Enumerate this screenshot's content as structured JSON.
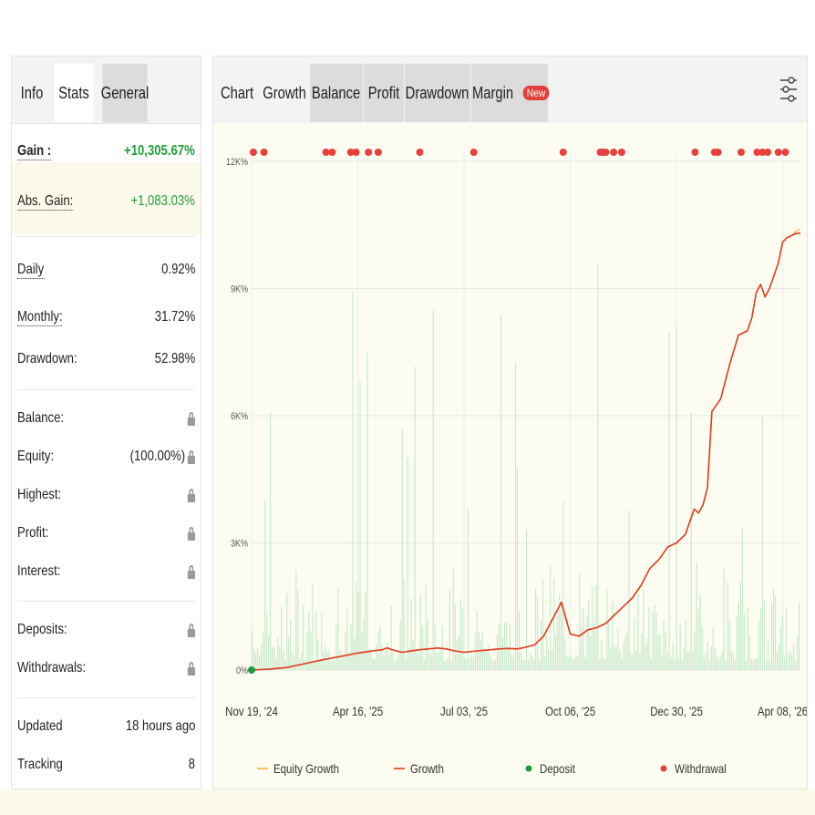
{
  "left_tabs": [
    "Info",
    "Stats",
    "General"
  ],
  "stats": {
    "gain": {
      "label": "Gain :",
      "value": "+10,305.67%"
    },
    "abs_gain": {
      "label": "Abs. Gain:",
      "value": "+1,083.03%"
    },
    "daily": {
      "label": "Daily",
      "value": "0.92%"
    },
    "monthly": {
      "label": "Monthly:",
      "value": "31.72%"
    },
    "drawdown": {
      "label": "Drawdown:",
      "value": "52.98%"
    },
    "balance": {
      "label": "Balance:"
    },
    "equity": {
      "label": "Equity:",
      "value": "(100.00%)"
    },
    "highest": {
      "label": "Highest:"
    },
    "profit": {
      "label": "Profit:"
    },
    "interest": {
      "label": "Interest:"
    },
    "deposits": {
      "label": "Deposits:"
    },
    "withdrawals": {
      "label": "Withdrawals:"
    },
    "updated": {
      "label": "Updated",
      "value": "18 hours ago"
    },
    "tracking": {
      "label": "Tracking",
      "value": "8"
    }
  },
  "right_tabs": [
    "Chart",
    "Growth",
    "Balance",
    "Profit",
    "Drawdown",
    "Margin"
  ],
  "new_badge": "New",
  "colors": {
    "gain_green": "#1f9e3a",
    "growth_line": "#e23b1e",
    "equity_line": "#f2b53c",
    "deposit_dot": "#1a9e3c",
    "withdrawal_dot": "#e8403a",
    "volume_bars": "#bfe6c8",
    "badge_red": "#e0413a"
  },
  "icons": {
    "settings": "sliders-icon",
    "lock": "lock-icon"
  },
  "chart_data": {
    "type": "line",
    "y_ticks": [
      "0%",
      "3K%",
      "6K%",
      "9K%",
      "12K%"
    ],
    "ylim": [
      0,
      12000
    ],
    "x_ticks": [
      "Nov 19, '24",
      "Apr 16, '25",
      "Jul 03, '25",
      "Oct 06, '25",
      "Dec 30, '25",
      "Apr 08, '26"
    ],
    "x": [
      0,
      20,
      40,
      60,
      80,
      100,
      120,
      140,
      148,
      150,
      153,
      156,
      160,
      170,
      180,
      190,
      200,
      210,
      220,
      230,
      240,
      250,
      260,
      270,
      280,
      290,
      300,
      310,
      320,
      330,
      340,
      350,
      360,
      370,
      380,
      390,
      400,
      410,
      420,
      430,
      440,
      450,
      460,
      470,
      480,
      490,
      500,
      505,
      510,
      515,
      520,
      530,
      540,
      550,
      560,
      565,
      570,
      575,
      580,
      585,
      590,
      595,
      600,
      605,
      610,
      615,
      620
    ],
    "series": [
      {
        "name": "Growth",
        "values": [
          0,
          20,
          60,
          150,
          240,
          320,
          400,
          460,
          480,
          500,
          520,
          500,
          470,
          420,
          450,
          480,
          500,
          520,
          500,
          450,
          420,
          440,
          460,
          480,
          500,
          510,
          500,
          540,
          600,
          800,
          1200,
          1600,
          850,
          800,
          950,
          1000,
          1100,
          1300,
          1500,
          1700,
          2000,
          2400,
          2600,
          2900,
          3000,
          3200,
          3800,
          3700,
          3900,
          4300,
          6100,
          6400,
          7200,
          7900,
          8000,
          8300,
          8900,
          9100,
          8800,
          9000,
          9300,
          9600,
          10100,
          10200,
          10250,
          10300,
          10305.67
        ]
      },
      {
        "name": "Equity Growth",
        "values": [
          0,
          20,
          60,
          150,
          240,
          320,
          400,
          460,
          480,
          500,
          520,
          500,
          470,
          420,
          450,
          480,
          500,
          520,
          500,
          450,
          420,
          440,
          460,
          480,
          500,
          510,
          500,
          540,
          600,
          800,
          1200,
          1600,
          850,
          800,
          950,
          1000,
          1100,
          1300,
          1500,
          1700,
          2000,
          2400,
          2600,
          2900,
          3000,
          3200,
          3800,
          3700,
          3900,
          4300,
          6100,
          6400,
          7200,
          7900,
          8000,
          8300,
          8900,
          9100,
          8800,
          9000,
          9300,
          9600,
          10100,
          10200,
          10250,
          10350,
          10400
        ]
      }
    ],
    "deposits_x": [
      0
    ],
    "withdrawals_x": [
      2,
      14,
      84,
      91,
      112,
      118,
      132,
      143,
      190,
      251,
      352,
      394,
      397,
      400,
      409,
      418,
      501,
      523,
      527,
      553,
      571,
      577,
      583,
      595,
      603
    ],
    "legend": [
      {
        "label": "Equity Growth",
        "kind": "line",
        "color": "#f2b53c"
      },
      {
        "label": "Growth",
        "kind": "line",
        "color": "#e23b1e"
      },
      {
        "label": "Deposit",
        "kind": "dot",
        "color": "#1a9e3c"
      },
      {
        "label": "Withdrawal",
        "kind": "dot",
        "color": "#e8403a"
      }
    ],
    "grid": true
  }
}
